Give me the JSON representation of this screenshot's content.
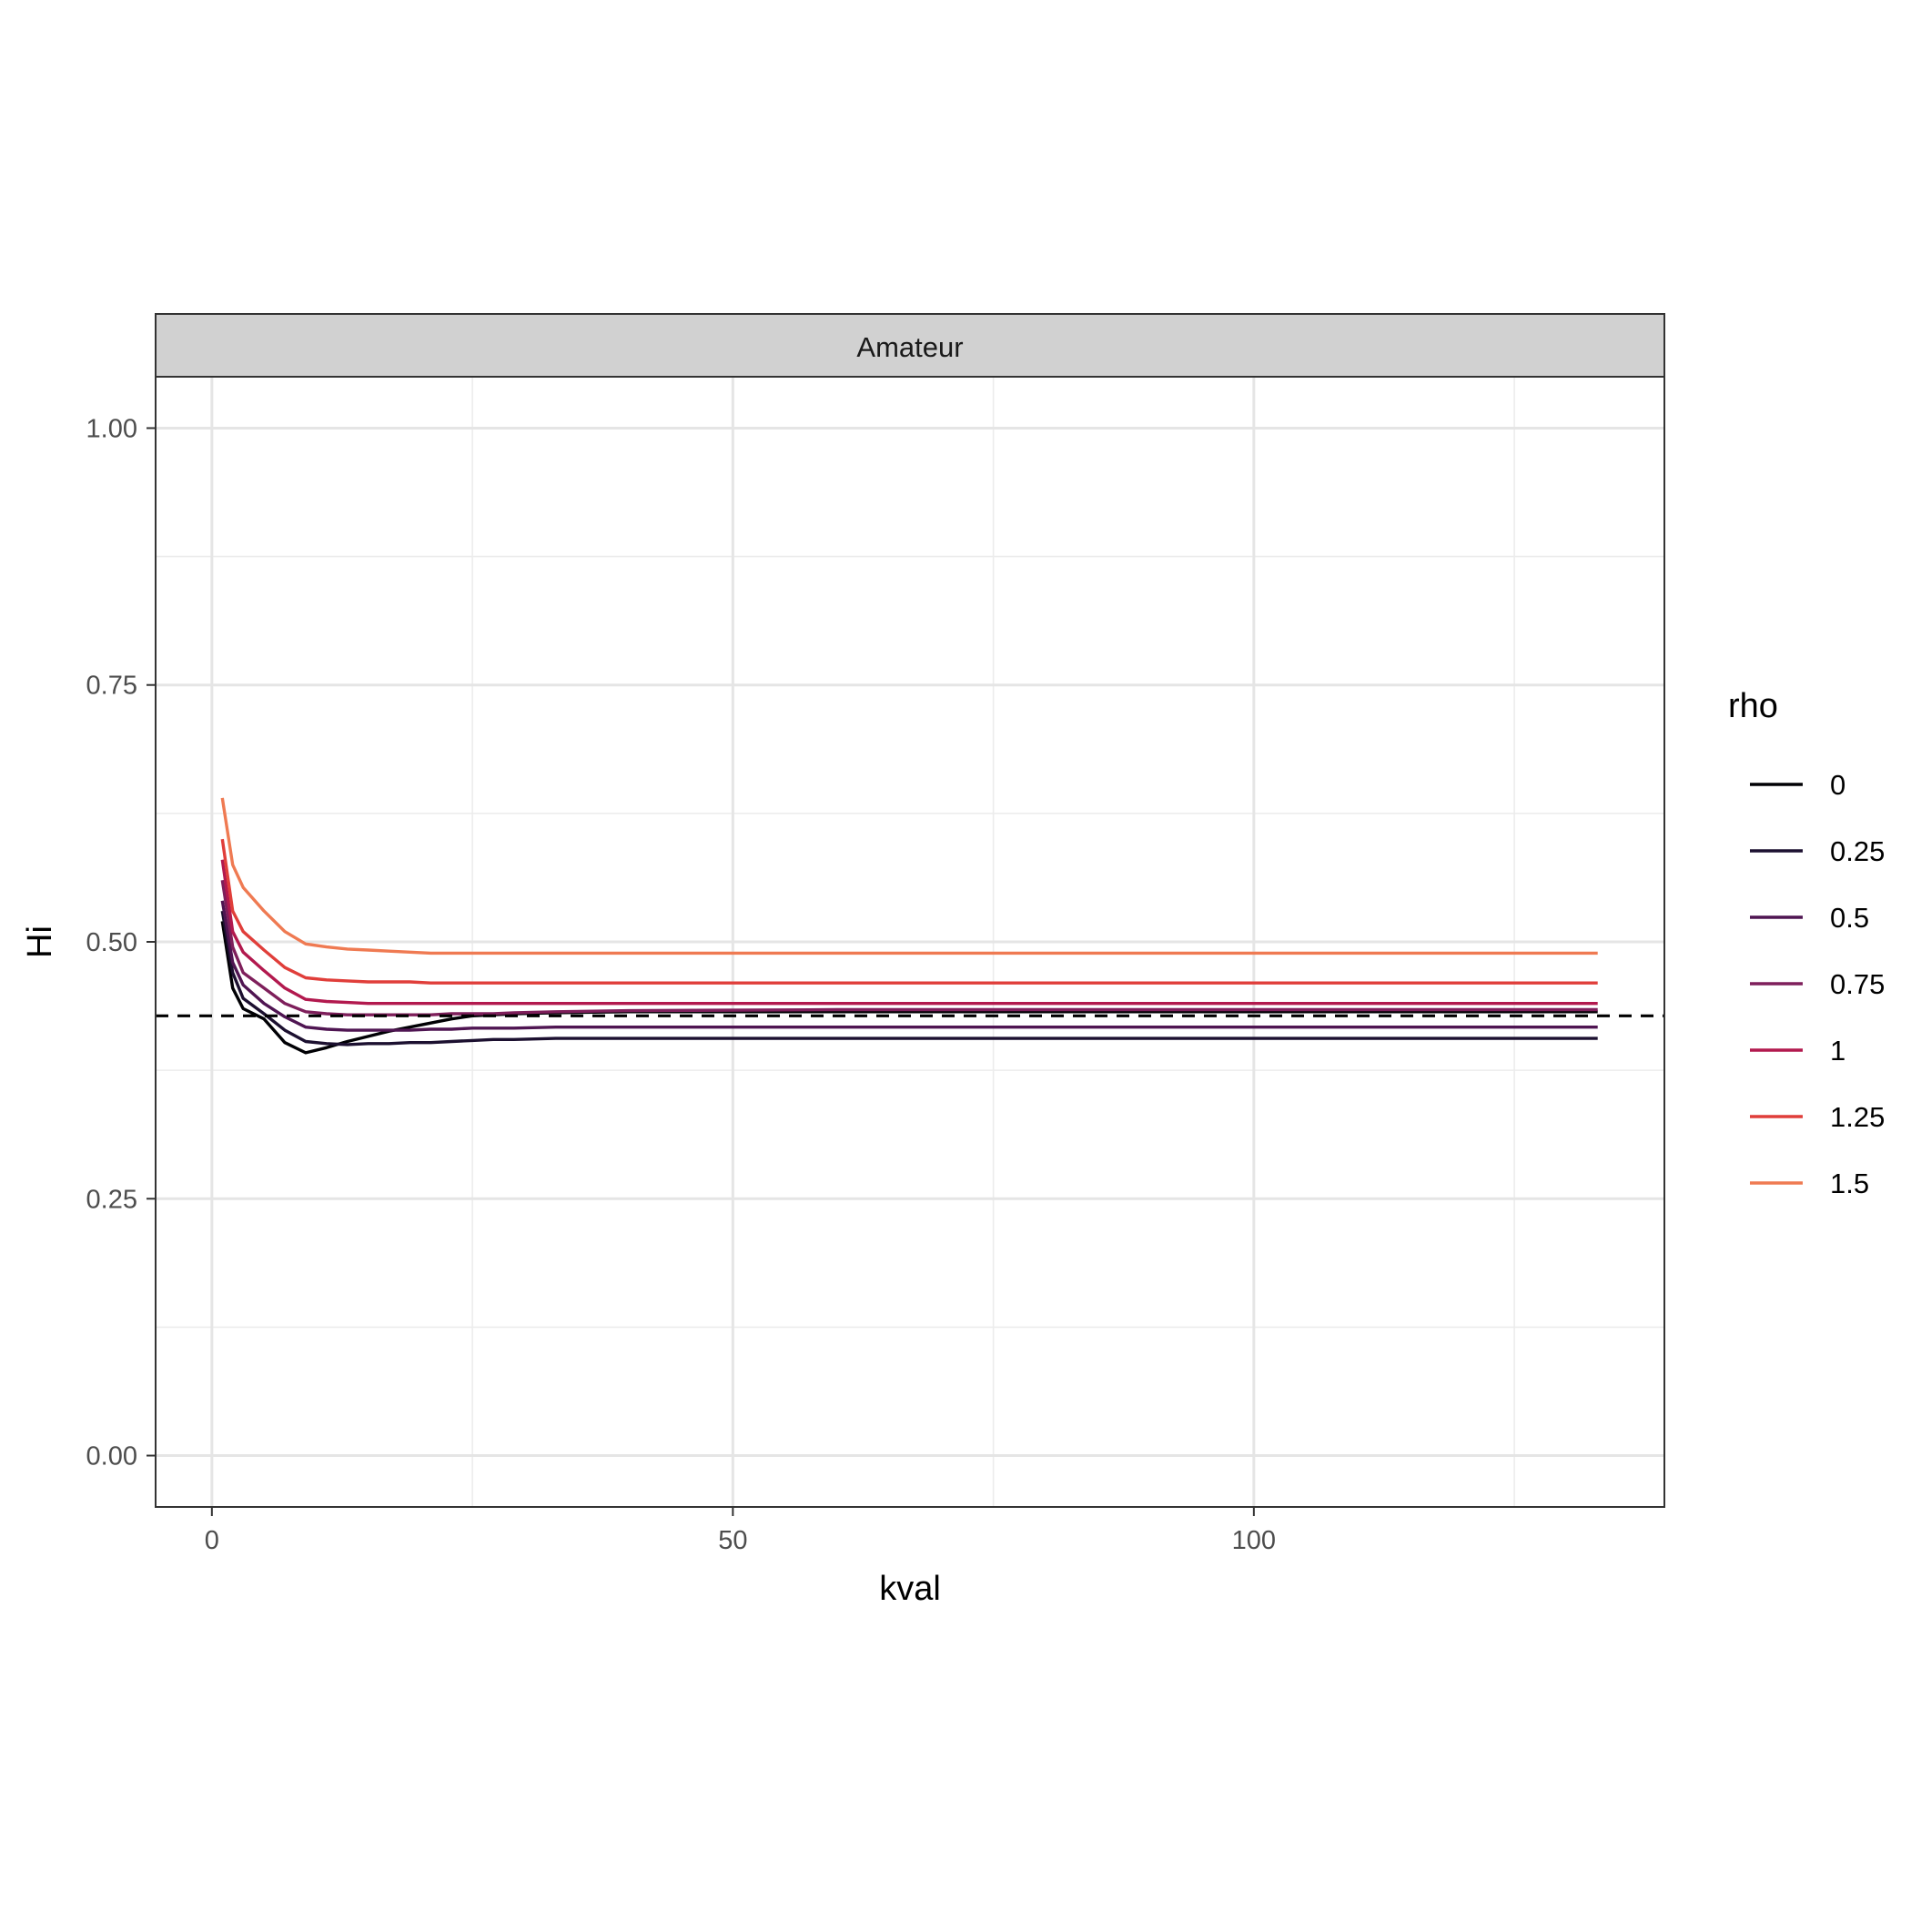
{
  "chart_data": {
    "type": "line",
    "facet": "Amateur",
    "xlabel": "kval",
    "ylabel": "Hi",
    "xlim": [
      -5.4,
      139.4
    ],
    "ylim": [
      -0.05,
      1.05
    ],
    "x_ticks": [
      0,
      50,
      100
    ],
    "y_ticks": [
      0.0,
      0.25,
      0.5,
      0.75,
      1.0
    ],
    "y_tick_labels": [
      "0.00",
      "0.25",
      "0.50",
      "0.75",
      "1.00"
    ],
    "grid": true,
    "reference_line": {
      "y": 0.428,
      "style": "dashed",
      "color": "#000000"
    },
    "legend": {
      "title": "rho",
      "position": "right"
    },
    "x": [
      1,
      2,
      3,
      5,
      7,
      9,
      11,
      13,
      15,
      17,
      19,
      21,
      23,
      25,
      27,
      29,
      33,
      40,
      60,
      80,
      100,
      133
    ],
    "series": [
      {
        "name": "0",
        "color": "#000004",
        "values": [
          0.52,
          0.455,
          0.435,
          0.425,
          0.402,
          0.392,
          0.397,
          0.403,
          0.408,
          0.413,
          0.417,
          0.421,
          0.425,
          0.428,
          0.429,
          0.43,
          0.431,
          0.432,
          0.432,
          0.432,
          0.432,
          0.432
        ]
      },
      {
        "name": "0.25",
        "color": "#1c1030",
        "values": [
          0.53,
          0.47,
          0.445,
          0.43,
          0.414,
          0.403,
          0.401,
          0.4,
          0.401,
          0.401,
          0.402,
          0.402,
          0.403,
          0.404,
          0.405,
          0.405,
          0.406,
          0.406,
          0.406,
          0.406,
          0.406,
          0.406
        ]
      },
      {
        "name": "0.5",
        "color": "#4f1552",
        "values": [
          0.54,
          0.48,
          0.458,
          0.44,
          0.427,
          0.417,
          0.415,
          0.414,
          0.414,
          0.414,
          0.414,
          0.415,
          0.415,
          0.416,
          0.416,
          0.416,
          0.417,
          0.417,
          0.417,
          0.417,
          0.417,
          0.417
        ]
      },
      {
        "name": "0.75",
        "color": "#7e1f5b",
        "values": [
          0.56,
          0.495,
          0.47,
          0.455,
          0.44,
          0.432,
          0.43,
          0.429,
          0.429,
          0.429,
          0.429,
          0.429,
          0.43,
          0.43,
          0.43,
          0.431,
          0.432,
          0.433,
          0.434,
          0.434,
          0.434,
          0.434
        ]
      },
      {
        "name": "1",
        "color": "#b2194e",
        "values": [
          0.58,
          0.51,
          0.49,
          0.472,
          0.455,
          0.444,
          0.442,
          0.441,
          0.44,
          0.44,
          0.44,
          0.44,
          0.44,
          0.44,
          0.44,
          0.44,
          0.44,
          0.44,
          0.44,
          0.44,
          0.44,
          0.44
        ]
      },
      {
        "name": "1.25",
        "color": "#e03e3a",
        "values": [
          0.6,
          0.53,
          0.51,
          0.492,
          0.475,
          0.465,
          0.463,
          0.462,
          0.461,
          0.461,
          0.461,
          0.46,
          0.46,
          0.46,
          0.46,
          0.46,
          0.46,
          0.46,
          0.46,
          0.46,
          0.46,
          0.46
        ]
      },
      {
        "name": "1.5",
        "color": "#ef7a52",
        "values": [
          0.64,
          0.575,
          0.553,
          0.53,
          0.51,
          0.498,
          0.495,
          0.493,
          0.492,
          0.491,
          0.49,
          0.489,
          0.489,
          0.489,
          0.489,
          0.489,
          0.489,
          0.489,
          0.489,
          0.489,
          0.489,
          0.489
        ]
      }
    ]
  }
}
